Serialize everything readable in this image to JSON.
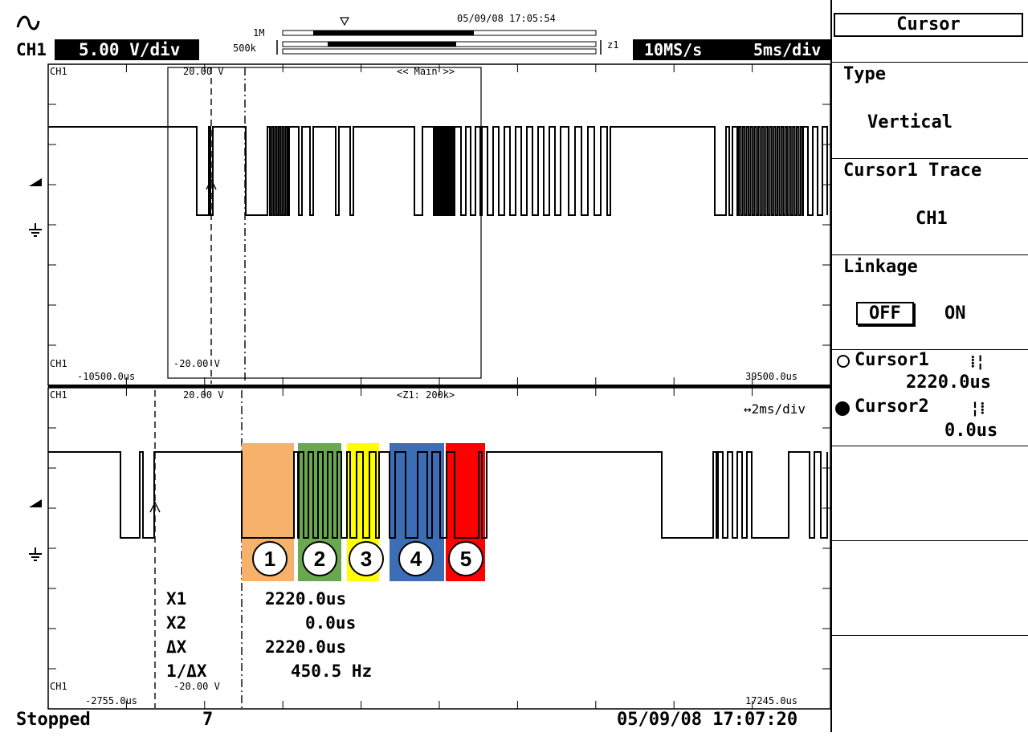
{
  "header": {
    "ch_label": "CH1",
    "volts_div": "5.00 V/div",
    "record_1m": "1M",
    "record_500k": "500k",
    "top_timestamp": "05/09/08 17:05:54",
    "zoom_tag": "z1",
    "sample_rate": "10MS/s",
    "time_div": "5ms/div"
  },
  "main_window": {
    "ch_top": "CH1",
    "upper_level": "20.00 V",
    "lower_level": "-20.00 V",
    "main_tag": "<< Main >>",
    "ch_bottom": "CH1",
    "left_time": "-10500.0us",
    "right_time": "39500.0us"
  },
  "zoom_window": {
    "ch_top": "CH1",
    "upper_level": "20.00 V",
    "zoom_tag": "<Z1: 200k>",
    "zoom_div": "↔2ms/div",
    "ch_bottom": "CH1",
    "lower_level": "-20.00 V",
    "left_time": "-2755.0us",
    "right_time": "17245.0us"
  },
  "segments": [
    {
      "label": "1",
      "color": "#F6B26B"
    },
    {
      "label": "2",
      "color": "#6AA84F"
    },
    {
      "label": "3",
      "color": "#FFFF00"
    },
    {
      "label": "4",
      "color": "#3D6DB5"
    },
    {
      "label": "5",
      "color": "#FF0000"
    }
  ],
  "measurements": {
    "x1_label": "X1",
    "x1_value": "2220.0us",
    "x2_label": "X2",
    "x2_value": "0.0us",
    "dx_label": "ΔX",
    "dx_value": "2220.0us",
    "inv_label": "1/ΔX",
    "inv_value": "450.5 Hz"
  },
  "status": {
    "state": "Stopped",
    "count": "7",
    "bottom_timestamp": "05/09/08 17:07:20"
  },
  "menu": {
    "title": "Cursor",
    "type_label": "Type",
    "type_value": "Vertical",
    "trace_label": "Cursor1 Trace",
    "trace_value": "CH1",
    "linkage_label": "Linkage",
    "linkage_off": "OFF",
    "linkage_on": "ON",
    "cursor1_label": "Cursor1",
    "cursor1_value": "2220.0us",
    "cursor2_label": "Cursor2",
    "cursor2_value": "0.0us"
  }
}
